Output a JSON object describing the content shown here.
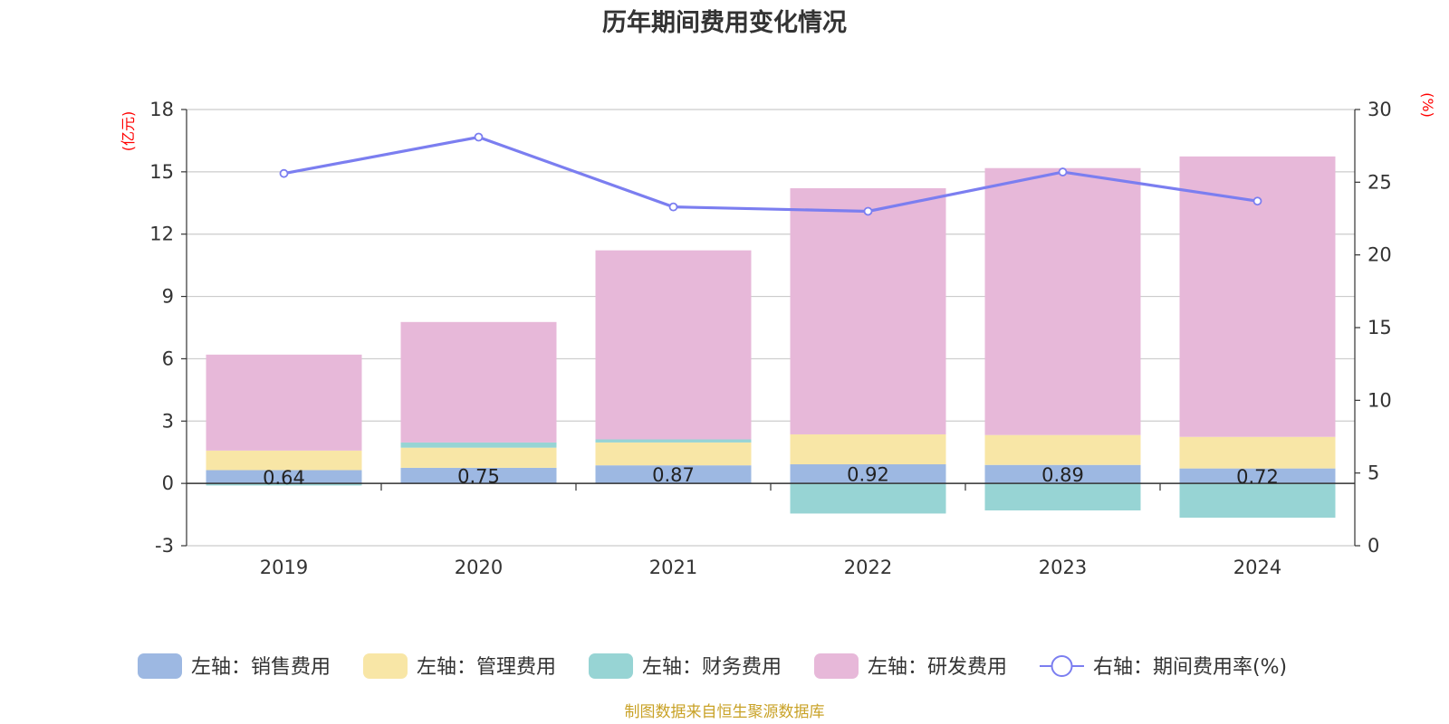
{
  "chart_data": {
    "type": "bar",
    "title": "历年期间费用变化情况",
    "categories": [
      "2019",
      "2020",
      "2021",
      "2022",
      "2023",
      "2024"
    ],
    "left_axis": {
      "unit": "(亿元)",
      "ticks": [
        "18",
        "15",
        "12",
        "9",
        "6",
        "3",
        "0",
        "-3"
      ],
      "ylim": [
        -3,
        18
      ]
    },
    "right_axis": {
      "unit": "(%)",
      "ticks": [
        "30",
        "25",
        "20",
        "15",
        "10",
        "5",
        "0"
      ],
      "ylim": [
        0,
        30
      ]
    },
    "grid": true,
    "legend_position": "bottom",
    "series": [
      {
        "name": "左轴：销售费用",
        "type": "bar",
        "axis": "left",
        "color": "#9db8e2",
        "values": [
          0.64,
          0.75,
          0.87,
          0.92,
          0.89,
          0.72
        ],
        "labels": [
          "0.64",
          "0.75",
          "0.87",
          "0.92",
          "0.89",
          "0.72"
        ]
      },
      {
        "name": "左轴：管理费用",
        "type": "bar",
        "axis": "left",
        "color": "#f8e6a6",
        "values": [
          0.94,
          0.97,
          1.1,
          1.44,
          1.44,
          1.52
        ]
      },
      {
        "name": "左轴：财务费用",
        "type": "bar",
        "axis": "left",
        "color": "#97d4d4",
        "values": [
          -0.1,
          0.25,
          0.15,
          -1.45,
          -1.3,
          -1.65
        ]
      },
      {
        "name": "左轴：研发费用",
        "type": "bar",
        "axis": "left",
        "color": "#e7b8d9",
        "values": [
          4.62,
          5.8,
          9.1,
          11.85,
          12.85,
          13.5
        ]
      },
      {
        "name": "右轴：期间费用率(%)",
        "type": "line",
        "axis": "right",
        "color": "#7b7ef0",
        "values": [
          25.6,
          28.1,
          23.3,
          23.0,
          25.7,
          23.7
        ]
      }
    ],
    "accent_color": "#ff0000"
  },
  "source": "制图数据来自恒生聚源数据库"
}
